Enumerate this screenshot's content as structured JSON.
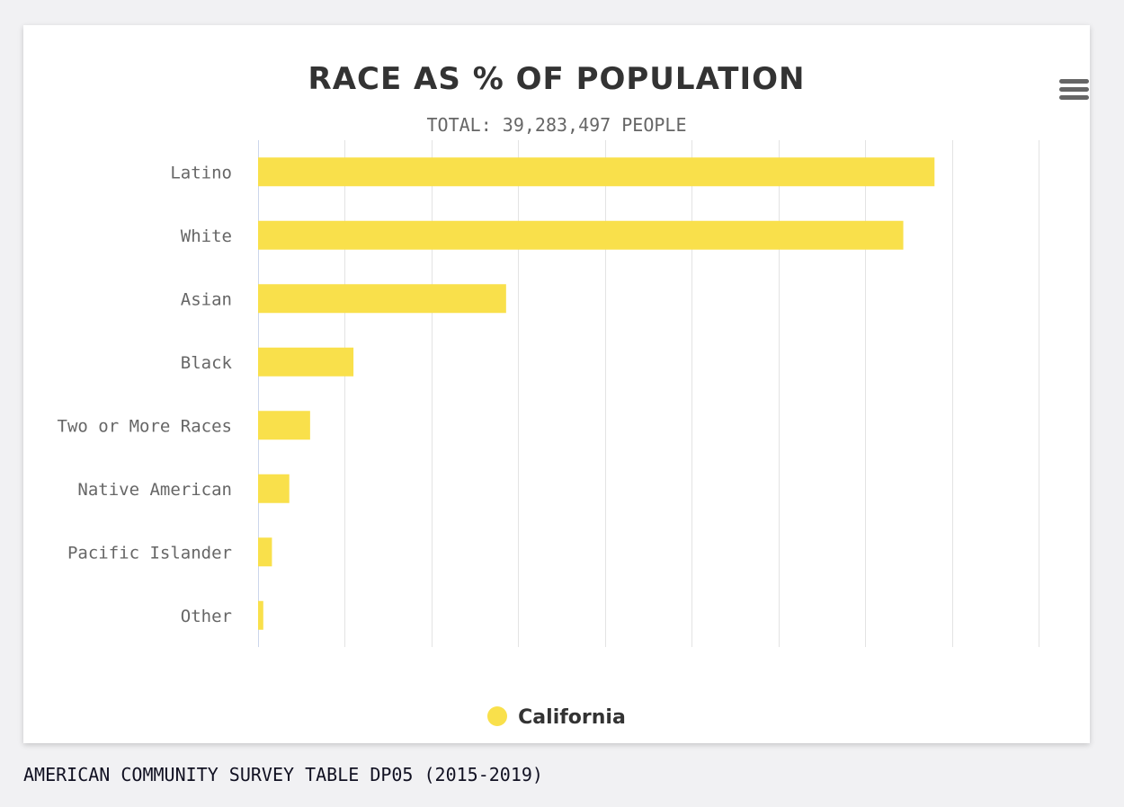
{
  "chart_data": {
    "type": "bar",
    "orientation": "horizontal",
    "title": "RACE AS % OF POPULATION",
    "subtitle": "TOTAL: 39,283,497 PEOPLE",
    "categories": [
      "Latino",
      "White",
      "Asian",
      "Black",
      "Two or More Races",
      "Native American",
      "Pacific Islander",
      "Other"
    ],
    "series": [
      {
        "name": "California",
        "values": [
          39.0,
          37.2,
          14.3,
          5.5,
          3.0,
          1.8,
          0.8,
          0.3
        ]
      }
    ],
    "xlim": [
      0,
      45
    ],
    "grid": true,
    "legend": "bottom-center",
    "colors": {
      "bar": "#f9e04b",
      "grid": "#e3e3e3",
      "axis": "#ccd6eb"
    }
  },
  "menu_icon": "hamburger-menu-icon",
  "source": "AMERICAN COMMUNITY SURVEY TABLE DP05 (2015-2019)"
}
